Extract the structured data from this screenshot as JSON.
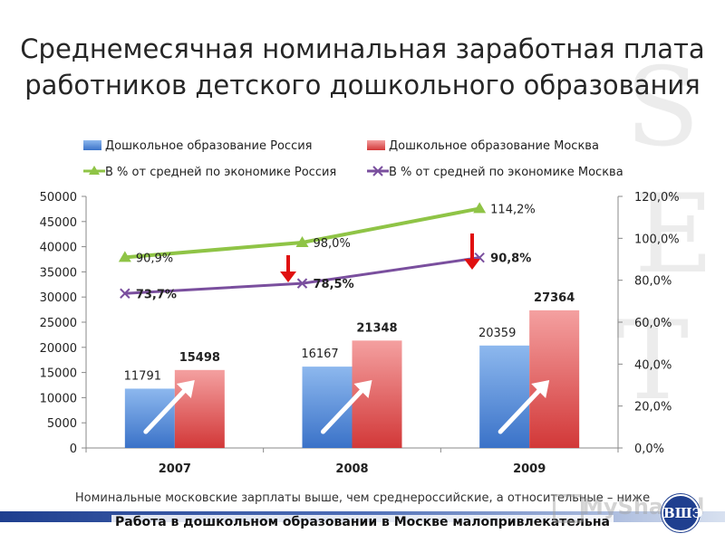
{
  "slide": {
    "title_line1": "Среднемесячная номинальная заработная плата",
    "title_line2": "работников детского дошкольного образования",
    "note": "Номинальные московские зарплаты выше, чем среднероссийские, а относительные – ниже",
    "conclusion": "Работа в дошкольном образовании в Москве малопривлекательна",
    "watermark": "MyShared",
    "logo_text": "ВШЭ"
  },
  "colors": {
    "bar_russia": "#4a86d6",
    "bar_moscow": "#e04848",
    "line_russia": "#8fc446",
    "line_moscow": "#7a4f9e",
    "arrow_down": "#e01010",
    "arrow_up": "#ffffff"
  },
  "chart_data": {
    "type": "bar",
    "categories": [
      "2007",
      "2008",
      "2009"
    ],
    "series": [
      {
        "name": "Дошкольное образование Россия",
        "kind": "bar",
        "axis": "left",
        "values": [
          11791,
          16167,
          20359
        ],
        "labels": [
          "11791",
          "16167",
          "20359"
        ],
        "label_bold": false
      },
      {
        "name": "Дошкольное образование Москва",
        "kind": "bar",
        "axis": "left",
        "values": [
          15498,
          21348,
          27364
        ],
        "labels": [
          "15498",
          "21348",
          "27364"
        ],
        "label_bold": true
      },
      {
        "name": "В % от средней по экономике Россия",
        "kind": "line",
        "axis": "right",
        "marker": "triangle",
        "values": [
          90.9,
          98.0,
          114.2
        ],
        "labels": [
          "90,9%",
          "98,0%",
          "114,2%"
        ],
        "label_bold": false
      },
      {
        "name": "В % от средней по экономике Москва",
        "kind": "line",
        "axis": "right",
        "marker": "x",
        "values": [
          73.7,
          78.5,
          90.8
        ],
        "labels": [
          "73,7%",
          "78,5%",
          "90,8%"
        ],
        "label_bold": true
      }
    ],
    "y_left": {
      "min": 0,
      "max": 50000,
      "ticks": [
        "0",
        "5000",
        "10000",
        "15000",
        "20000",
        "25000",
        "30000",
        "35000",
        "40000",
        "45000",
        "50000"
      ]
    },
    "y_right": {
      "min": 0,
      "max": 120,
      "ticks": [
        "0,0%",
        "20,0%",
        "40,0%",
        "60,0%",
        "80,0%",
        "100,0%",
        "120,0%"
      ]
    },
    "legend": "top",
    "grid": false
  }
}
